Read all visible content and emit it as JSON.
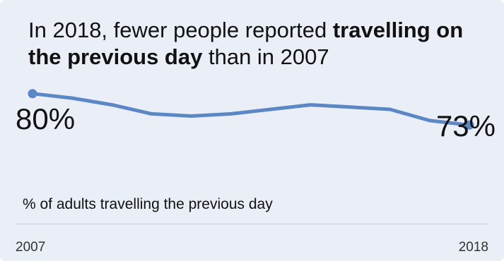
{
  "title": {
    "prefix": "In 2018, fewer people reported ",
    "bold": "travelling on the previous day",
    "suffix": " than in 2007"
  },
  "start_label": "80%",
  "end_label": "73%",
  "subtitle": "% of adults travelling the previous day",
  "colors": {
    "line": "#5b87c5",
    "background": "#e9eef7"
  },
  "chart_data": {
    "type": "line",
    "x": [
      2007,
      2008,
      2009,
      2010,
      2011,
      2012,
      2013,
      2014,
      2015,
      2016,
      2017,
      2018
    ],
    "y": [
      80,
      79,
      77.5,
      75.5,
      75,
      75.5,
      76.5,
      77.5,
      77,
      76.5,
      74,
      73
    ],
    "title": "In 2018, fewer people reported travelling on the previous day than in 2007",
    "ylabel": "% of adults travelling the previous day",
    "x_tick_labels": [
      "2007",
      "2018"
    ],
    "ylim": [
      60,
      82
    ],
    "grid": false
  }
}
